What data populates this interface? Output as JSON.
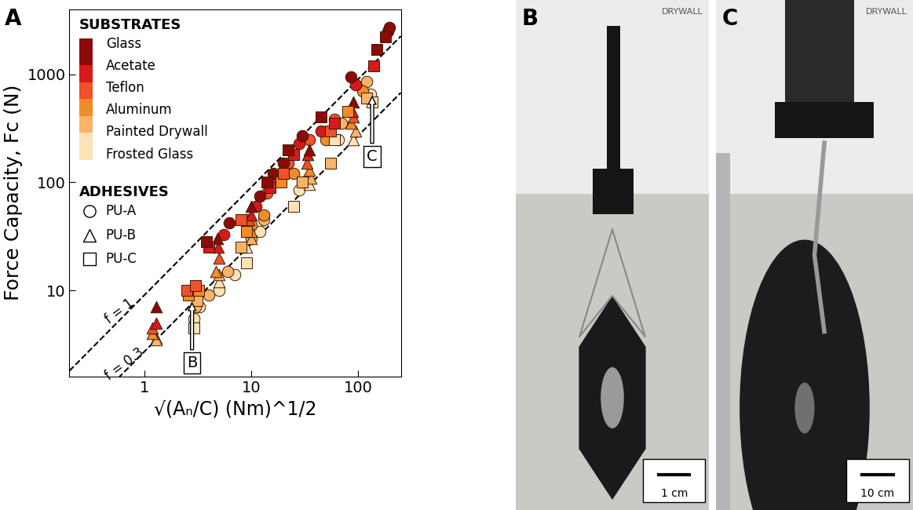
{
  "chart_data": {
    "type": "scatter",
    "panel": "A",
    "x_label": "√(Aₙ/C) (Nm)^1/2",
    "y_label": "Force Capacity, Fc (N)",
    "log": true,
    "grid": false,
    "xlim": [
      0.2,
      250
    ],
    "ylim": [
      1.6,
      4000
    ],
    "xticks": [
      1,
      10,
      100
    ],
    "yticks": [
      10,
      100,
      1000
    ],
    "substrates_title": "SUBSTRATES",
    "adhesives_title": "ADHESIVES",
    "substrates": [
      {
        "name": "Glass",
        "color": "#8b0a0a"
      },
      {
        "name": "Acetate",
        "color": "#d7191c"
      },
      {
        "name": "Teflon",
        "color": "#f0502a"
      },
      {
        "name": "Aluminum",
        "color": "#f08c2a"
      },
      {
        "name": "Painted Drywall",
        "color": "#f8b36b"
      },
      {
        "name": "Frosted Glass",
        "color": "#fde2b8"
      }
    ],
    "adhesives": [
      {
        "name": "PU-A",
        "marker": "circle"
      },
      {
        "name": "PU-B",
        "marker": "triangle"
      },
      {
        "name": "PU-C",
        "marker": "square"
      }
    ],
    "lines": [
      {
        "label": "f = 1",
        "line_style": "dashed",
        "x": [
          0.2,
          250
        ],
        "values": [
          1.8,
          2250
        ]
      },
      {
        "label": "f = 0.3",
        "line_style": "dashed",
        "x": [
          0.2,
          250
        ],
        "values": [
          0.54,
          675
        ]
      }
    ],
    "series": [
      {
        "substrate": "Frosted Glass",
        "adhesive": "PU-A",
        "x": [
          2.9,
          3.3,
          5,
          7,
          12,
          28,
          65,
          130
        ],
        "values": [
          5.5,
          7,
          10,
          14,
          35,
          85,
          250,
          650
        ]
      },
      {
        "substrate": "Painted Drywall",
        "adhesive": "PU-A",
        "x": [
          3,
          4,
          6,
          10,
          13,
          30,
          70,
          120
        ],
        "values": [
          7,
          9,
          15,
          30,
          45,
          100,
          350,
          850
        ]
      },
      {
        "substrate": "Aluminum",
        "adhesive": "PU-A",
        "x": [
          10,
          13,
          25,
          50,
          110
        ],
        "values": [
          40,
          50,
          120,
          250,
          700
        ]
      },
      {
        "substrate": "Teflon",
        "adhesive": "PU-A",
        "x": [
          9,
          14,
          22,
          35,
          60
        ],
        "values": [
          45,
          80,
          150,
          250,
          380
        ]
      },
      {
        "substrate": "Acetate",
        "adhesive": "PU-A",
        "x": [
          5.5,
          11,
          17,
          28,
          45,
          95
        ],
        "values": [
          33,
          60,
          110,
          230,
          300,
          800
        ]
      },
      {
        "substrate": "Glass",
        "adhesive": "PU-A",
        "x": [
          6.2,
          12,
          16,
          20,
          30,
          85,
          190,
          195
        ],
        "values": [
          42,
          75,
          120,
          150,
          270,
          950,
          2500,
          2700
        ]
      },
      {
        "substrate": "Frosted Glass",
        "adhesive": "PU-B",
        "x": [
          1.3,
          5,
          9,
          35,
          90
        ],
        "values": [
          3.6,
          12,
          25,
          95,
          250
        ]
      },
      {
        "substrate": "Painted Drywall",
        "adhesive": "PU-B",
        "x": [
          1.3,
          5,
          10,
          36,
          95
        ],
        "values": [
          3.5,
          14,
          30,
          110,
          300
        ]
      },
      {
        "substrate": "Aluminum",
        "adhesive": "PU-B",
        "x": [
          1.2,
          4.7,
          10,
          35,
          85
        ],
        "values": [
          4,
          15,
          35,
          130,
          350
        ]
      },
      {
        "substrate": "Teflon",
        "adhesive": "PU-B",
        "x": [
          1.2,
          5,
          9.5,
          33,
          90
        ],
        "values": [
          4.5,
          20,
          45,
          150,
          400
        ]
      },
      {
        "substrate": "Acetate",
        "adhesive": "PU-B",
        "x": [
          1.3,
          4.9,
          10,
          34,
          88
        ],
        "values": [
          5,
          25,
          50,
          180,
          450
        ]
      },
      {
        "substrate": "Glass",
        "adhesive": "PU-B",
        "x": [
          1.3,
          4.8,
          10,
          35,
          90
        ],
        "values": [
          7,
          30,
          60,
          200,
          550
        ]
      },
      {
        "substrate": "Frosted Glass",
        "adhesive": "PU-C",
        "x": [
          2.9,
          9,
          25,
          60,
          135
        ],
        "values": [
          4.5,
          18,
          60,
          250,
          550
        ]
      },
      {
        "substrate": "Painted Drywall",
        "adhesive": "PU-C",
        "x": [
          3.1,
          8,
          30,
          55,
          120
        ],
        "values": [
          8,
          25,
          100,
          150,
          600
        ]
      },
      {
        "substrate": "Aluminum",
        "adhesive": "PU-C",
        "x": [
          2.6,
          3.2,
          9,
          19,
          80
        ],
        "values": [
          9,
          10,
          35,
          100,
          450
        ]
      },
      {
        "substrate": "Teflon",
        "adhesive": "PU-C",
        "x": [
          2.5,
          3,
          8,
          20,
          55
        ],
        "values": [
          10,
          11,
          45,
          120,
          300
        ]
      },
      {
        "substrate": "Acetate",
        "adhesive": "PU-C",
        "x": [
          4,
          15,
          25,
          60,
          140
        ],
        "values": [
          25,
          90,
          180,
          350,
          1200
        ]
      },
      {
        "substrate": "Glass",
        "adhesive": "PU-C",
        "x": [
          3.8,
          14,
          22,
          45,
          150,
          180
        ],
        "values": [
          28,
          100,
          200,
          400,
          1700,
          2200
        ]
      }
    ],
    "annotations": [
      {
        "text": "B",
        "x": 2.8,
        "y": 8
      },
      {
        "text": "C",
        "x": 135,
        "y": 650
      }
    ]
  },
  "photos": [
    {
      "panel": "B",
      "wall_label": "DRYWALL",
      "scale_bar": "1 cm"
    },
    {
      "panel": "C",
      "wall_label": "DRYWALL",
      "scale_bar": "10 cm"
    }
  ]
}
